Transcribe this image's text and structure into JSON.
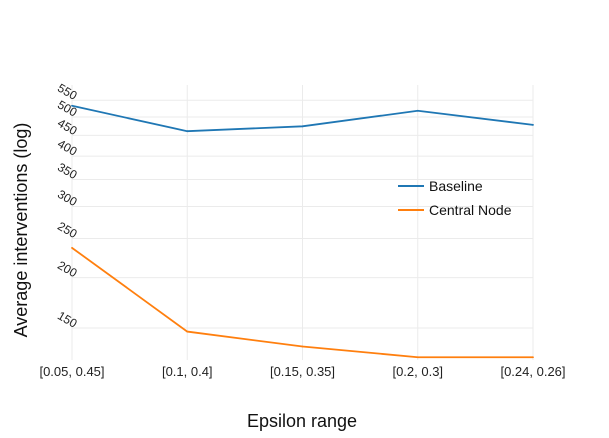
{
  "chart_data": {
    "type": "line",
    "title": "",
    "xlabel": "Epsilon range",
    "ylabel": "Average interventions (log)",
    "y_scale": "log",
    "categories": [
      "[0.05, 0.45]",
      "[0.1, 0.4]",
      "[0.15, 0.35]",
      "[0.2, 0.3]",
      "[0.24, 0.26]"
    ],
    "yticks": [
      150,
      200,
      250,
      300,
      350,
      400,
      450,
      500,
      550
    ],
    "ylim": [
      125,
      600
    ],
    "grid": true,
    "legend_position": "right",
    "series": [
      {
        "name": "Baseline",
        "color": "#1f77b4",
        "values": [
          533,
          461,
          474,
          518,
          478
        ]
      },
      {
        "name": "Central Node",
        "color": "#ff7f0e",
        "values": [
          237,
          147,
          135,
          127,
          127
        ]
      }
    ]
  }
}
